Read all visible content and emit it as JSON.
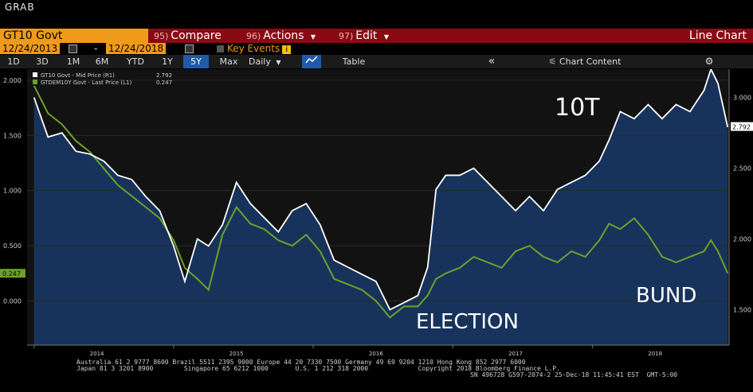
{
  "app_label": "GRAB",
  "toolbar": {
    "ticker": "GT10 Govt",
    "compare": {
      "num": "95)",
      "label": "Compare"
    },
    "actions": {
      "num": "96)",
      "label": "Actions"
    },
    "edit": {
      "num": "97)",
      "label": "Edit"
    },
    "chart_type": "Line Chart"
  },
  "dates": {
    "start": "12/24/2013",
    "separator": "-",
    "end": "12/24/2018",
    "key_events": "Key Events",
    "info": "i"
  },
  "periods": [
    "1D",
    "3D",
    "1M",
    "6M",
    "YTD",
    "1Y",
    "5Y",
    "Max"
  ],
  "active_period": "5Y",
  "frequency": "Daily",
  "table_label": "Table",
  "collapse_glyph": "«",
  "chart_content_label": "Chart Content",
  "settings_glyph": "⚙",
  "colors": {
    "us10y": "#ffffff",
    "bund": "#6aa22a",
    "fill": "#17335c",
    "bg": "#121212"
  },
  "chart_data": {
    "type": "line",
    "x_ticks": [
      "2014",
      "2015",
      "2016",
      "2017",
      "2018"
    ],
    "left_axis": {
      "ticks": [
        "2.000",
        "1.500",
        "1.000",
        "0.500",
        "0.000"
      ],
      "range": [
        -0.4,
        2.1
      ]
    },
    "right_axis": {
      "ticks": [
        "3.000",
        "2.500",
        "2.000",
        "1.500"
      ],
      "range": [
        1.25,
        3.2
      ]
    },
    "last_labels": {
      "left": "0.247",
      "right": "2.792"
    },
    "legend": [
      {
        "name": "GT10 Govt - Mid Price (R1)",
        "value": "2.792"
      },
      {
        "name": "GTDEM10Y Govt - Last Price (L1)",
        "value": "0.247"
      }
    ],
    "annotations": [
      "10T",
      "ELECTION",
      "BUND"
    ],
    "series": [
      {
        "name": "GT10 Govt - Mid Price (R1)",
        "axis": "right",
        "x": [
          2014.0,
          2014.1,
          2014.2,
          2014.3,
          2014.4,
          2014.5,
          2014.6,
          2014.7,
          2014.8,
          2014.9,
          2015.0,
          2015.08,
          2015.17,
          2015.25,
          2015.35,
          2015.45,
          2015.55,
          2015.65,
          2015.75,
          2015.85,
          2015.95,
          2016.05,
          2016.15,
          2016.25,
          2016.35,
          2016.45,
          2016.55,
          2016.65,
          2016.75,
          2016.82,
          2016.88,
          2016.95,
          2017.05,
          2017.15,
          2017.25,
          2017.35,
          2017.45,
          2017.55,
          2017.65,
          2017.75,
          2017.85,
          2017.95,
          2018.05,
          2018.12,
          2018.2,
          2018.3,
          2018.4,
          2018.5,
          2018.6,
          2018.7,
          2018.8,
          2018.85,
          2018.9,
          2018.97
        ],
        "values": [
          3.0,
          2.72,
          2.75,
          2.62,
          2.6,
          2.55,
          2.45,
          2.42,
          2.3,
          2.2,
          1.95,
          1.7,
          2.0,
          1.95,
          2.1,
          2.4,
          2.25,
          2.15,
          2.05,
          2.2,
          2.25,
          2.1,
          1.85,
          1.8,
          1.75,
          1.7,
          1.5,
          1.55,
          1.6,
          1.8,
          2.35,
          2.45,
          2.45,
          2.5,
          2.4,
          2.3,
          2.2,
          2.3,
          2.2,
          2.35,
          2.4,
          2.45,
          2.55,
          2.7,
          2.9,
          2.85,
          2.95,
          2.85,
          2.95,
          2.9,
          3.05,
          3.2,
          3.1,
          2.79
        ]
      },
      {
        "name": "GTDEM10Y Govt - Last Price (L1)",
        "axis": "left",
        "x": [
          2014.0,
          2014.1,
          2014.2,
          2014.3,
          2014.4,
          2014.5,
          2014.6,
          2014.7,
          2014.8,
          2014.9,
          2015.0,
          2015.08,
          2015.17,
          2015.25,
          2015.35,
          2015.45,
          2015.55,
          2015.65,
          2015.75,
          2015.85,
          2015.95,
          2016.05,
          2016.15,
          2016.25,
          2016.35,
          2016.45,
          2016.55,
          2016.65,
          2016.75,
          2016.82,
          2016.88,
          2016.95,
          2017.05,
          2017.15,
          2017.25,
          2017.35,
          2017.45,
          2017.55,
          2017.65,
          2017.75,
          2017.85,
          2017.95,
          2018.05,
          2018.12,
          2018.2,
          2018.3,
          2018.4,
          2018.5,
          2018.6,
          2018.7,
          2018.8,
          2018.85,
          2018.9,
          2018.97
        ],
        "values": [
          1.95,
          1.7,
          1.6,
          1.45,
          1.35,
          1.2,
          1.05,
          0.95,
          0.85,
          0.75,
          0.55,
          0.3,
          0.2,
          0.1,
          0.6,
          0.85,
          0.7,
          0.65,
          0.55,
          0.5,
          0.6,
          0.45,
          0.2,
          0.15,
          0.1,
          0.0,
          -0.15,
          -0.05,
          -0.05,
          0.05,
          0.2,
          0.25,
          0.3,
          0.4,
          0.35,
          0.3,
          0.45,
          0.5,
          0.4,
          0.35,
          0.45,
          0.4,
          0.55,
          0.7,
          0.65,
          0.75,
          0.6,
          0.4,
          0.35,
          0.4,
          0.45,
          0.55,
          0.45,
          0.25
        ]
      }
    ]
  },
  "footer": {
    "line1": "Australia 61 2 9777 8600 Brazil 5511 2395 9000 Europe 44 20 7330 7500 Germany 49 69 9204 1210 Hong Kong 852 2977 6000",
    "line2": "Japan 81 3 3201 8900        Singapore 65 6212 1000       U.S. 1 212 318 2000             Copyright 2018 Bloomberg Finance L.P.",
    "line3": "SN 496728 G597-2074-2 25-Dec-18 11:45:41 EST  GMT-5:00"
  }
}
